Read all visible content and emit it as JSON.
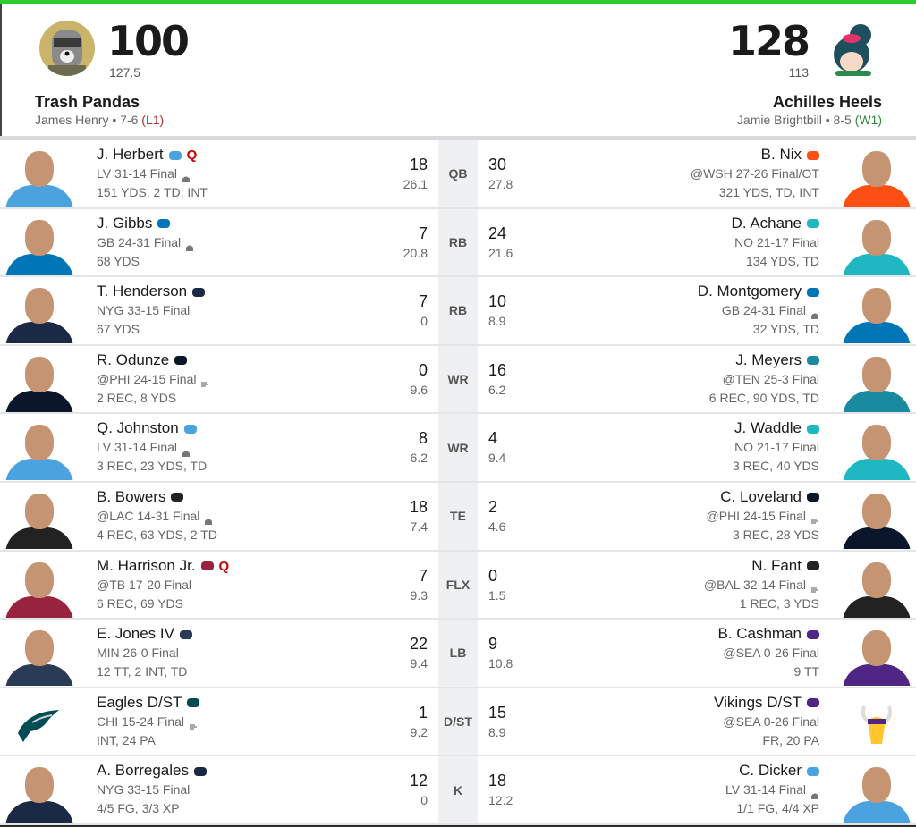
{
  "colors": {
    "accent": "#2ecc2e",
    "loss": "#aa3333",
    "win": "#2a8a3a",
    "questionable": "#cc0000"
  },
  "home": {
    "score": "100",
    "projected": "127.5",
    "team_name": "Trash Pandas",
    "owner": "James Henry",
    "record": "7-6",
    "streak": "(L1)",
    "avatar": "raccoon-avatar"
  },
  "away": {
    "score": "128",
    "projected": "113",
    "team_name": "Achilles Heels",
    "owner": "Jamie Brightbill",
    "record": "8-5",
    "streak": "(W1)",
    "avatar": "cartoon-girl-avatar"
  },
  "rows": [
    {
      "pos": "QB",
      "left": {
        "name": "J. Herbert",
        "team": "LAC",
        "status": "Q",
        "game": "LV 31-14 Final",
        "weather": "dome",
        "stats": "151 YDS, 2 TD, INT",
        "points": "18",
        "proj": "26.1"
      },
      "right": {
        "name": "B. Nix",
        "team": "DEN",
        "game": "@WSH 27-26 Final/OT",
        "stats": "321 YDS, TD, INT",
        "points": "30",
        "proj": "27.8"
      }
    },
    {
      "pos": "RB",
      "left": {
        "name": "J. Gibbs",
        "team": "DET",
        "game": "GB 24-31 Final",
        "weather": "dome",
        "stats": "68 YDS",
        "points": "7",
        "proj": "20.8"
      },
      "right": {
        "name": "D. Achane",
        "team": "MIA",
        "game": "NO 21-17 Final",
        "stats": "134 YDS, TD",
        "points": "24",
        "proj": "21.6"
      }
    },
    {
      "pos": "RB",
      "left": {
        "name": "T. Henderson",
        "team": "NE",
        "game": "NYG 33-15 Final",
        "stats": "67 YDS",
        "points": "7",
        "proj": "0"
      },
      "right": {
        "name": "D. Montgomery",
        "team": "DET",
        "game": "GB 24-31 Final",
        "weather": "dome",
        "stats": "32 YDS, TD",
        "points": "10",
        "proj": "8.9"
      }
    },
    {
      "pos": "WR",
      "left": {
        "name": "R. Odunze",
        "team": "CHI",
        "game": "@PHI 24-15 Final",
        "weather": "wind",
        "stats": "2 REC, 8 YDS",
        "points": "0",
        "proj": "9.6"
      },
      "right": {
        "name": "J. Meyers",
        "team": "JAX",
        "game": "@TEN 25-3 Final",
        "stats": "6 REC, 90 YDS, TD",
        "points": "16",
        "proj": "6.2"
      }
    },
    {
      "pos": "WR",
      "left": {
        "name": "Q. Johnston",
        "team": "LAC",
        "game": "LV 31-14 Final",
        "weather": "dome",
        "stats": "3 REC, 23 YDS, TD",
        "points": "8",
        "proj": "6.2"
      },
      "right": {
        "name": "J. Waddle",
        "team": "MIA",
        "game": "NO 21-17 Final",
        "stats": "3 REC, 40 YDS",
        "points": "4",
        "proj": "9.4"
      }
    },
    {
      "pos": "TE",
      "left": {
        "name": "B. Bowers",
        "team": "LV",
        "game": "@LAC 14-31 Final",
        "weather": "dome",
        "stats": "4 REC, 63 YDS, 2 TD",
        "points": "18",
        "proj": "7.4"
      },
      "right": {
        "name": "C. Loveland",
        "team": "CHI",
        "game": "@PHI 24-15 Final",
        "weather": "wind",
        "stats": "3 REC, 28 YDS",
        "points": "2",
        "proj": "4.6"
      }
    },
    {
      "pos": "FLX",
      "left": {
        "name": "M. Harrison Jr.",
        "team": "ARI",
        "status": "Q",
        "game": "@TB 17-20 Final",
        "stats": "6 REC, 69 YDS",
        "points": "7",
        "proj": "9.3"
      },
      "right": {
        "name": "N. Fant",
        "team": "CIN",
        "game": "@BAL 32-14 Final",
        "weather": "wind",
        "stats": "1 REC, 3 YDS",
        "points": "0",
        "proj": "1.5"
      }
    },
    {
      "pos": "LB",
      "left": {
        "name": "E. Jones IV",
        "team": "SEA",
        "game": "MIN 26-0 Final",
        "stats": "12 TT, 2 INT, TD",
        "points": "22",
        "proj": "9.4"
      },
      "right": {
        "name": "B. Cashman",
        "team": "MIN",
        "game": "@SEA 0-26 Final",
        "stats": "9 TT",
        "points": "9",
        "proj": "10.8"
      }
    },
    {
      "pos": "D/ST",
      "left": {
        "name": "Eagles D/ST",
        "team": "PHI",
        "dst": true,
        "game": "CHI 15-24 Final",
        "weather": "wind",
        "stats": "INT, 24 PA",
        "points": "1",
        "proj": "9.2"
      },
      "right": {
        "name": "Vikings D/ST",
        "team": "MIN",
        "dst": true,
        "game": "@SEA 0-26 Final",
        "stats": "FR, 20 PA",
        "points": "15",
        "proj": "8.9"
      }
    },
    {
      "pos": "K",
      "left": {
        "name": "A. Borregales",
        "team": "NE",
        "game": "NYG 33-15 Final",
        "stats": "4/5 FG, 3/3 XP",
        "points": "12",
        "proj": "0"
      },
      "right": {
        "name": "C. Dicker",
        "team": "LAC",
        "game": "LV 31-14 Final",
        "weather": "dome",
        "stats": "1/1 FG, 4/4 XP",
        "points": "18",
        "proj": "12.2"
      }
    }
  ],
  "team_colors": {
    "LAC": "#4aa3df",
    "DET": "#0076b6",
    "NE": "#1b2a44",
    "CHI": "#0b162a",
    "LV": "#222222",
    "ARI": "#97233f",
    "SEA": "#2a3b55",
    "PHI": "#004c54",
    "DEN": "#fb4f14",
    "MIA": "#1fb7c1",
    "JAX": "#1a8aa0",
    "CIN": "#222222",
    "MIN": "#4f2683"
  }
}
